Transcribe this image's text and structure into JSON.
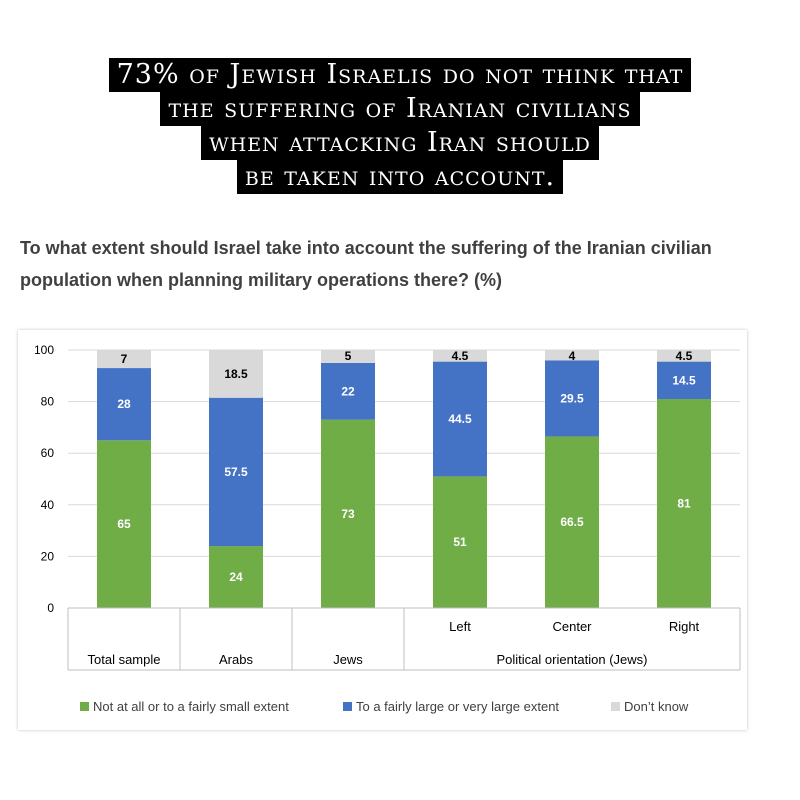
{
  "headline": {
    "lines": [
      "73% of Jewish Israelis do not think that",
      "the suffering of Iranian civilians",
      "when attacking Iran should",
      "be taken into account."
    ]
  },
  "question": "To what extent should Israel take into account the suffering of the Iranian civilian population when planning military operations there? (%)",
  "chart_data": {
    "type": "bar",
    "stacked": true,
    "ylim": [
      0,
      100
    ],
    "yticks": [
      0,
      20,
      40,
      60,
      80,
      100
    ],
    "categories": [
      "Total sample",
      "Arabs",
      "Jews",
      "Left",
      "Center",
      "Right"
    ],
    "group_label": "Political orientation (Jews)",
    "series": [
      {
        "name": "Not at all or to a fairly small extent",
        "color": "#70ad47",
        "values": [
          65,
          24,
          73,
          51,
          66.5,
          81
        ]
      },
      {
        "name": "To a fairly large or very large extent",
        "color": "#4472c4",
        "values": [
          28,
          57.5,
          22,
          44.5,
          29.5,
          14.5
        ]
      },
      {
        "name": "Don’t know",
        "color": "#d9d9d9",
        "values": [
          7,
          18.5,
          5,
          4.5,
          4,
          4.5
        ]
      }
    ],
    "legend_position": "bottom",
    "grid": true
  }
}
